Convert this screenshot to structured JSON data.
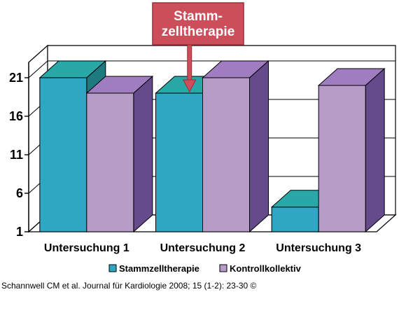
{
  "chart_data": {
    "type": "bar",
    "style": "3d-clustered-column",
    "categories": [
      "Untersuchung 1",
      "Untersuchung 2",
      "Untersuchung 3"
    ],
    "series": [
      {
        "name": "Stammzelltherapie",
        "values": [
          21,
          19,
          4.2
        ]
      },
      {
        "name": "Kontrollkollektiv",
        "values": [
          19,
          21,
          20
        ]
      }
    ],
    "yticks": [
      1,
      6,
      11,
      16,
      21
    ],
    "ylim": [
      1,
      23
    ],
    "grid": true,
    "legend": "bottom",
    "annotation": {
      "lines": [
        "Stamm-",
        "zelltherapie"
      ],
      "target_category": "Untersuchung 2"
    }
  },
  "colors": {
    "series1_front": "#2ea6c4",
    "series1_top": "#2aa8a8",
    "series1_side": "#1d7a7e",
    "series2_front": "#b79cc8",
    "series2_top": "#a07cc0",
    "series2_side": "#654b8c",
    "callout_fill": "#cc4e5a",
    "callout_border": "#9a2e36"
  },
  "citation": "Schannwell CM et al. Journal für Kardiologie 2008; 15 (1-2): 23-30 ©"
}
